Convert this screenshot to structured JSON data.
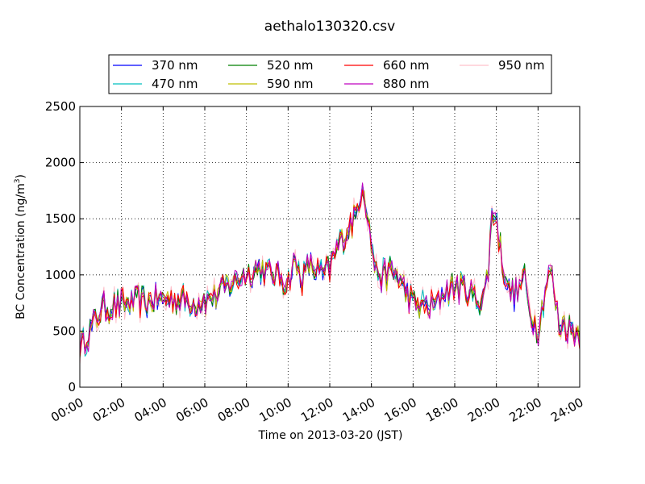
{
  "chart_data": {
    "type": "line",
    "title": "aethalo130320.csv",
    "xlabel": "Time on 2013-03-20 (JST)",
    "ylabel": "BC Concentration (ng/m",
    "ylabel_sup": "3",
    "ylabel_close": ")",
    "xlim": [
      0,
      24
    ],
    "ylim": [
      0,
      2500
    ],
    "x_unit": "hours",
    "x_ticks": [
      0,
      2,
      4,
      6,
      8,
      10,
      12,
      14,
      16,
      18,
      20,
      22,
      24
    ],
    "x_tick_labels": [
      "00:00",
      "02:00",
      "04:00",
      "06:00",
      "08:00",
      "10:00",
      "12:00",
      "14:00",
      "16:00",
      "18:00",
      "20:00",
      "22:00",
      "24:00"
    ],
    "y_ticks": [
      0,
      500,
      1000,
      1500,
      2000,
      2500
    ],
    "y_tick_labels": [
      "0",
      "500",
      "1000",
      "1500",
      "2000",
      "2500"
    ],
    "grid": true,
    "legend_position": "top",
    "series": [
      {
        "name": "370 nm",
        "color": "#0000ff"
      },
      {
        "name": "470 nm",
        "color": "#00bfbf"
      },
      {
        "name": "520 nm",
        "color": "#007f00"
      },
      {
        "name": "590 nm",
        "color": "#bfbf00"
      },
      {
        "name": "660 nm",
        "color": "#ff0000"
      },
      {
        "name": "880 nm",
        "color": "#bf00bf"
      },
      {
        "name": "950 nm",
        "color": "#ffc0cb"
      }
    ],
    "base_profile": {
      "x": [
        0,
        0.5,
        1,
        1.5,
        2,
        3,
        4,
        5,
        5.5,
        6,
        6.5,
        7,
        7.5,
        8,
        8.5,
        9,
        9.5,
        10,
        10.3,
        10.7,
        11,
        11.3,
        11.6,
        12,
        12.5,
        13,
        13.3,
        13.6,
        13.9,
        14.2,
        14.5,
        15,
        15.5,
        16,
        16.5,
        17,
        17.5,
        18,
        18.5,
        19,
        19.3,
        19.6,
        19.8,
        20,
        20.3,
        20.6,
        21,
        21.3,
        21.6,
        22,
        22.3,
        22.6,
        23,
        23.5,
        24
      ],
      "y": [
        350,
        500,
        680,
        720,
        730,
        760,
        780,
        770,
        760,
        780,
        820,
        900,
        960,
        1020,
        1050,
        1030,
        990,
        950,
        1100,
        960,
        1100,
        1050,
        990,
        1050,
        1300,
        1450,
        1550,
        1850,
        1400,
        1050,
        980,
        1050,
        900,
        750,
        720,
        720,
        850,
        900,
        880,
        800,
        770,
        1000,
        1600,
        1500,
        1100,
        860,
        820,
        1000,
        680,
        520,
        820,
        1050,
        570,
        530,
        480
      ]
    }
  }
}
